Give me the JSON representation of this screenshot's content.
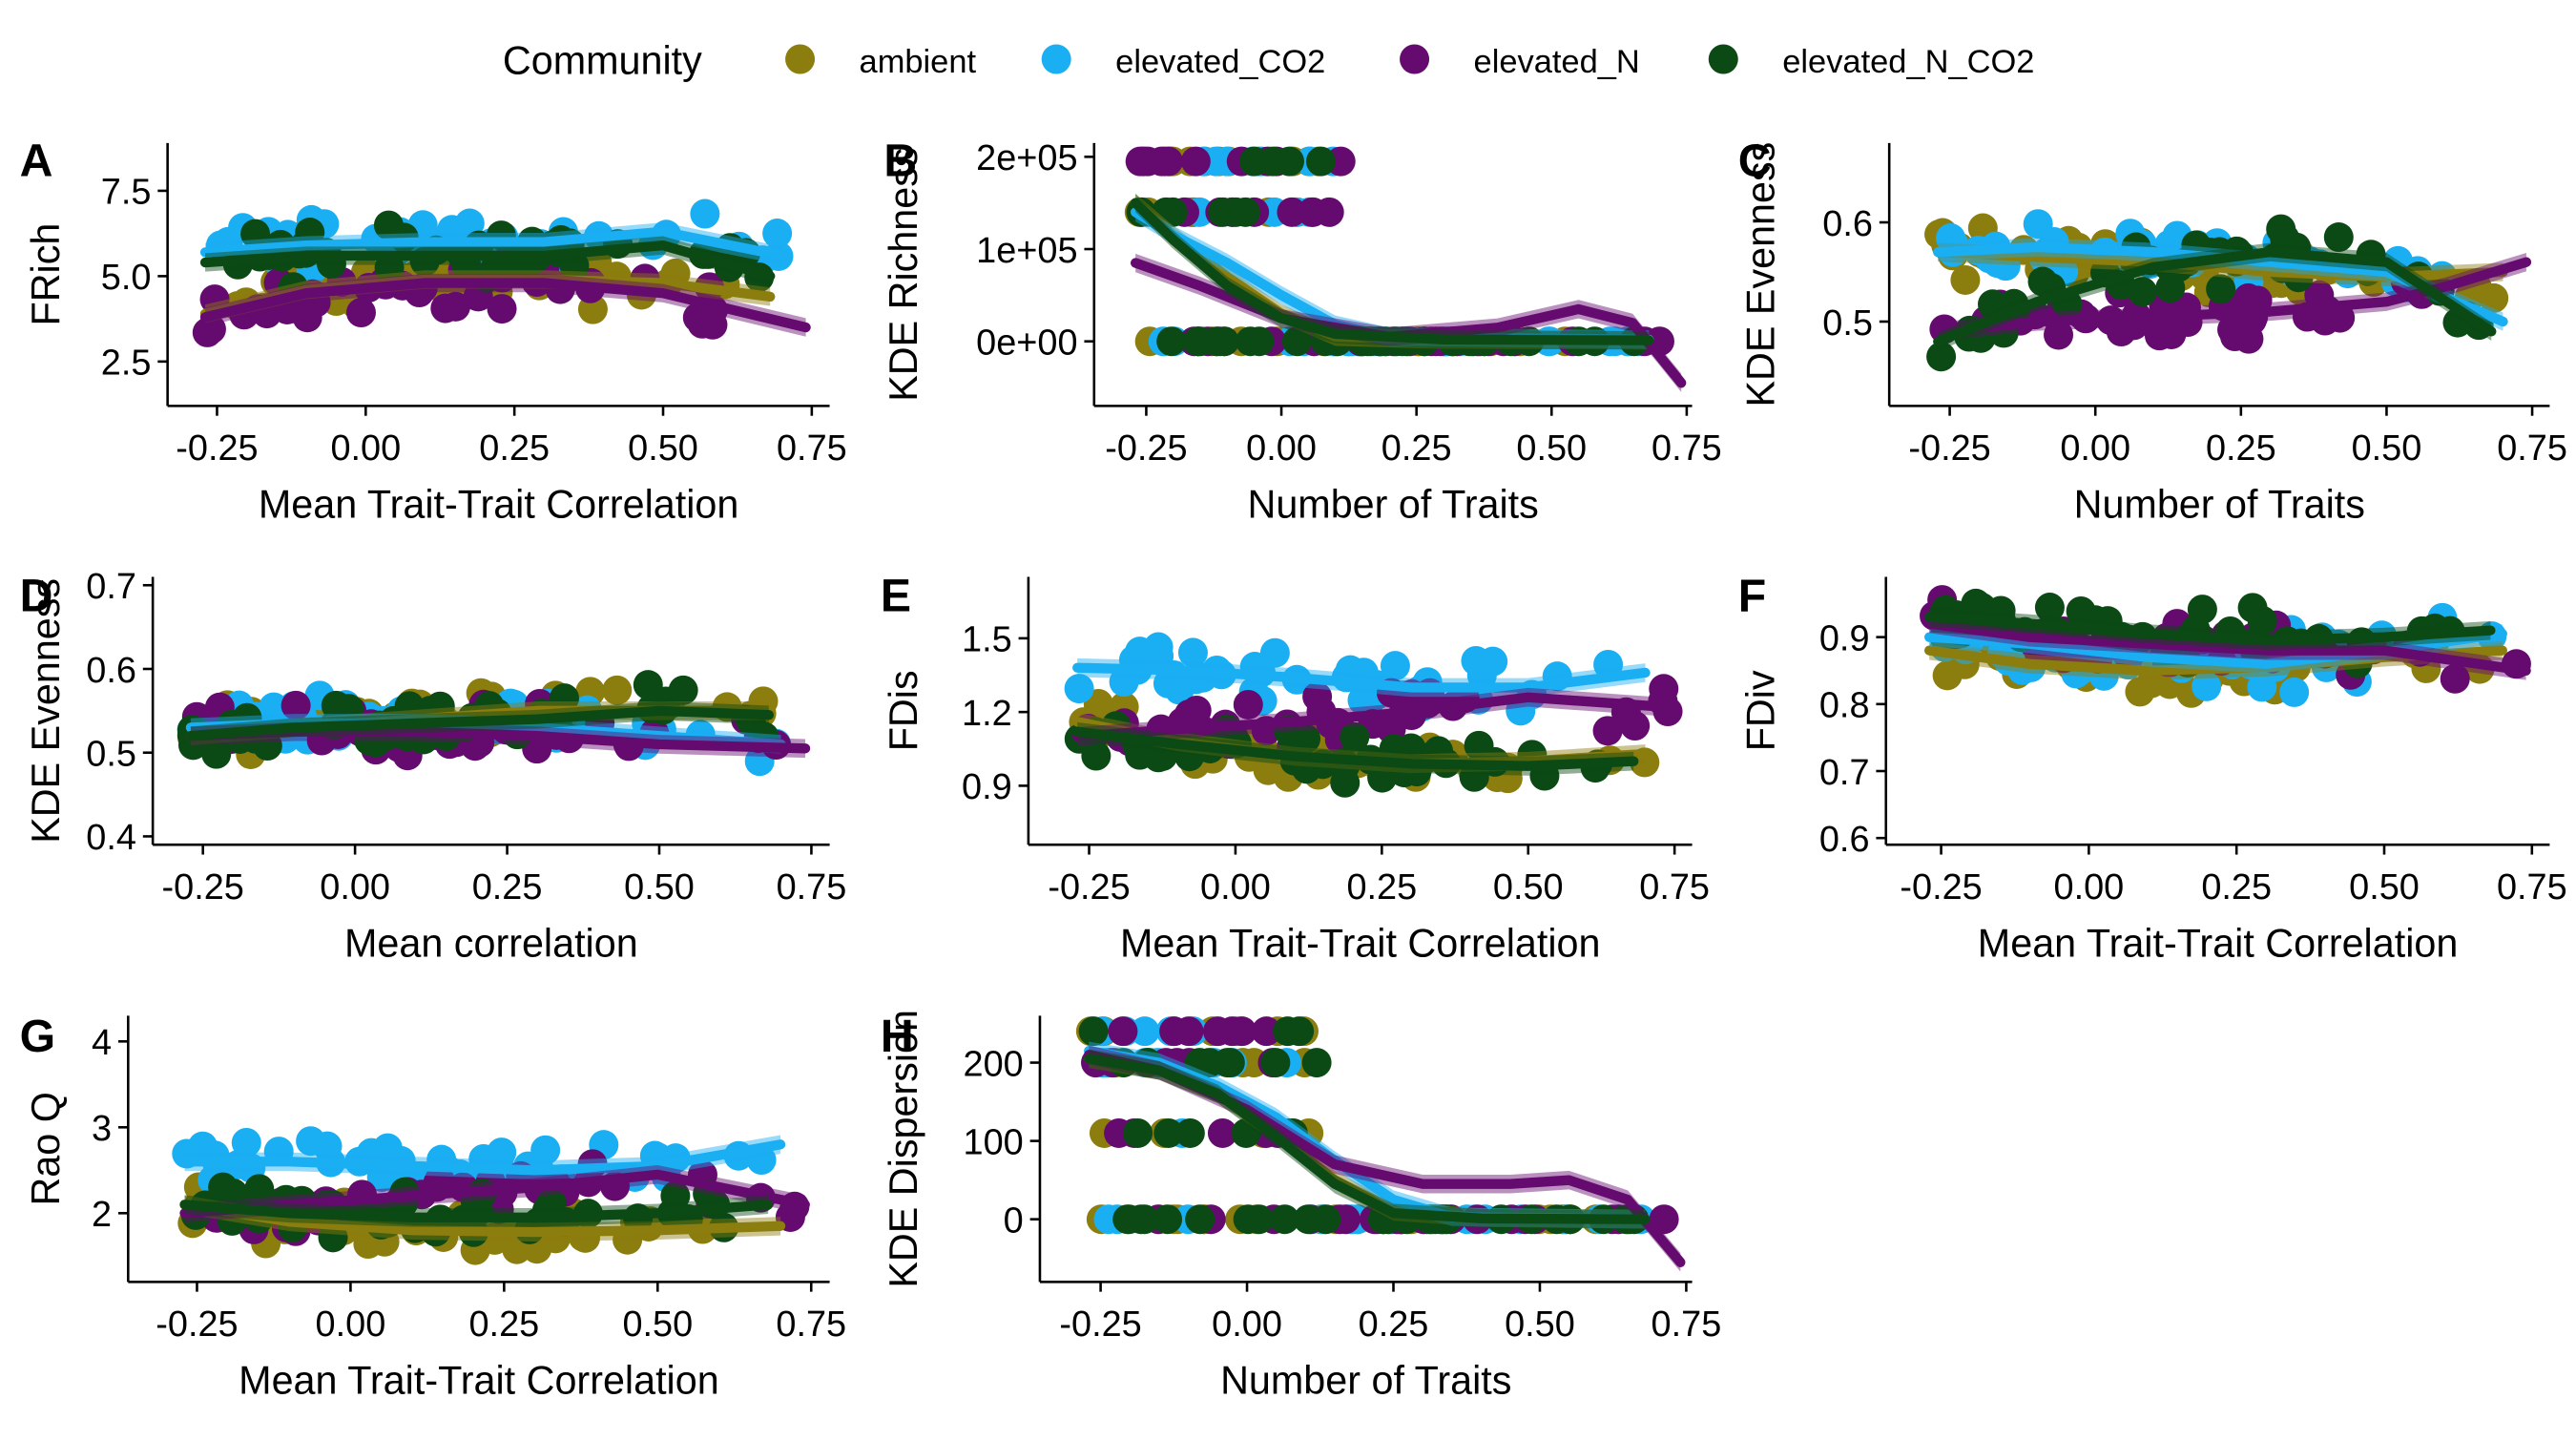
{
  "legend": {
    "title": "Community",
    "items": [
      {
        "label": "ambient",
        "color": "#8B7D0E"
      },
      {
        "label": "elevated_CO2",
        "color": "#1AAEF3"
      },
      {
        "label": "elevated_N",
        "color": "#650A6E"
      },
      {
        "label": "elevated_N_CO2",
        "color": "#0C4A15"
      }
    ]
  },
  "chart_data": [
    {
      "panel": "A",
      "type": "scatter",
      "xlabel": "Mean Trait-Trait Correlation",
      "ylabel": "FRich",
      "xlim": [
        -0.3,
        0.78
      ],
      "ylim": [
        1.2,
        8.9
      ],
      "xticks": [
        -0.25,
        0.0,
        0.25,
        0.5,
        0.75
      ],
      "xtick_labels": [
        "-0.25",
        "0.00",
        "0.25",
        "0.50",
        "0.75"
      ],
      "yticks": [
        2.5,
        5.0,
        7.5
      ],
      "ytick_labels": [
        "2.5",
        "5.0",
        "7.5"
      ],
      "trend": {
        "ambient": [
          [
            -0.27,
            3.9
          ],
          [
            -0.1,
            4.6
          ],
          [
            0.1,
            4.9
          ],
          [
            0.3,
            4.9
          ],
          [
            0.5,
            4.8
          ],
          [
            0.68,
            4.4
          ]
        ],
        "elevated_CO2": [
          [
            -0.27,
            5.7
          ],
          [
            -0.1,
            5.9
          ],
          [
            0.1,
            6.0
          ],
          [
            0.3,
            6.0
          ],
          [
            0.5,
            6.3
          ],
          [
            0.7,
            5.6
          ]
        ],
        "elevated_N": [
          [
            -0.27,
            3.8
          ],
          [
            -0.1,
            4.5
          ],
          [
            0.1,
            4.8
          ],
          [
            0.3,
            4.8
          ],
          [
            0.5,
            4.5
          ],
          [
            0.74,
            3.5
          ]
        ],
        "elevated_N_CO2": [
          [
            -0.27,
            5.4
          ],
          [
            -0.1,
            5.6
          ],
          [
            0.1,
            5.6
          ],
          [
            0.3,
            5.6
          ],
          [
            0.5,
            5.9
          ],
          [
            0.68,
            5.0
          ]
        ]
      }
    },
    {
      "panel": "B",
      "type": "scatter",
      "xlabel": "Number of Traits",
      "ylabel": "KDE Richness",
      "xlim": [
        -0.31,
        0.76
      ],
      "ylim": [
        -70000,
        215000
      ],
      "xticks": [
        -0.25,
        0.0,
        0.25,
        0.5,
        0.75
      ],
      "xtick_labels": [
        "-0.25",
        "0.00",
        "0.25",
        "0.50",
        "0.75"
      ],
      "yticks": [
        0,
        100000,
        200000
      ],
      "ytick_labels": [
        "0e+00",
        "1e+05",
        "2e+05"
      ],
      "trend": {
        "ambient": [
          [
            -0.27,
            150000
          ],
          [
            -0.2,
            115000
          ],
          [
            -0.1,
            70000
          ],
          [
            0.0,
            30000
          ],
          [
            0.1,
            5000
          ],
          [
            0.3,
            2000
          ],
          [
            0.68,
            1000
          ]
        ],
        "elevated_CO2": [
          [
            -0.27,
            140000
          ],
          [
            -0.2,
            115000
          ],
          [
            -0.1,
            85000
          ],
          [
            0.0,
            50000
          ],
          [
            0.1,
            18000
          ],
          [
            0.2,
            5000
          ],
          [
            0.68,
            2000
          ]
        ],
        "elevated_N": [
          [
            -0.27,
            85000
          ],
          [
            -0.15,
            60000
          ],
          [
            0.0,
            25000
          ],
          [
            0.2,
            5000
          ],
          [
            0.4,
            15000
          ],
          [
            0.55,
            35000
          ],
          [
            0.65,
            20000
          ],
          [
            0.74,
            -45000
          ]
        ],
        "elevated_N_CO2": [
          [
            -0.27,
            150000
          ],
          [
            -0.2,
            110000
          ],
          [
            -0.1,
            60000
          ],
          [
            0.0,
            25000
          ],
          [
            0.1,
            8000
          ],
          [
            0.3,
            2000
          ],
          [
            0.68,
            1000
          ]
        ]
      }
    },
    {
      "panel": "C",
      "type": "scatter",
      "xlabel": "Number of Traits",
      "ylabel": "KDE Evenness",
      "xlim": [
        -0.32,
        0.78
      ],
      "ylim": [
        0.415,
        0.68
      ],
      "xticks": [
        -0.25,
        0.0,
        0.25,
        0.5,
        0.75
      ],
      "xtick_labels": [
        "-0.25",
        "0.00",
        "0.25",
        "0.50",
        "0.75"
      ],
      "yticks": [
        0.5,
        0.6
      ],
      "ytick_labels": [
        "0.5",
        "0.6"
      ],
      "trend": {
        "ambient": [
          [
            -0.27,
            0.57
          ],
          [
            -0.1,
            0.565
          ],
          [
            0.1,
            0.56
          ],
          [
            0.3,
            0.55
          ],
          [
            0.5,
            0.545
          ],
          [
            0.7,
            0.55
          ]
        ],
        "elevated_CO2": [
          [
            -0.27,
            0.57
          ],
          [
            -0.1,
            0.575
          ],
          [
            0.1,
            0.57
          ],
          [
            0.3,
            0.56
          ],
          [
            0.5,
            0.55
          ],
          [
            0.7,
            0.5
          ]
        ],
        "elevated_N": [
          [
            -0.27,
            0.49
          ],
          [
            -0.1,
            0.5
          ],
          [
            0.1,
            0.505
          ],
          [
            0.3,
            0.51
          ],
          [
            0.5,
            0.52
          ],
          [
            0.6,
            0.535
          ],
          [
            0.74,
            0.56
          ]
        ],
        "elevated_N_CO2": [
          [
            -0.27,
            0.48
          ],
          [
            -0.1,
            0.52
          ],
          [
            0.1,
            0.555
          ],
          [
            0.3,
            0.57
          ],
          [
            0.5,
            0.56
          ],
          [
            0.68,
            0.49
          ]
        ]
      }
    },
    {
      "panel": "D",
      "type": "scatter",
      "xlabel": "Mean correlation",
      "ylabel": "KDE Evenness",
      "xlim": [
        -0.3,
        0.78
      ],
      "ylim": [
        0.39,
        0.71
      ],
      "xticks": [
        -0.25,
        0.0,
        0.25,
        0.5,
        0.75
      ],
      "xtick_labels": [
        "-0.25",
        "0.00",
        "0.25",
        "0.50",
        "0.75"
      ],
      "yticks": [
        0.4,
        0.5,
        0.6,
        0.7
      ],
      "ytick_labels": [
        "0.4",
        "0.5",
        "0.6",
        "0.7"
      ],
      "trend": {
        "ambient": [
          [
            -0.27,
            0.52
          ],
          [
            -0.1,
            0.53
          ],
          [
            0.1,
            0.54
          ],
          [
            0.3,
            0.55
          ],
          [
            0.5,
            0.55
          ],
          [
            0.68,
            0.55
          ]
        ],
        "elevated_CO2": [
          [
            -0.27,
            0.53
          ],
          [
            -0.1,
            0.535
          ],
          [
            0.1,
            0.535
          ],
          [
            0.3,
            0.53
          ],
          [
            0.5,
            0.52
          ],
          [
            0.7,
            0.51
          ]
        ],
        "elevated_N": [
          [
            -0.27,
            0.52
          ],
          [
            -0.1,
            0.525
          ],
          [
            0.1,
            0.525
          ],
          [
            0.3,
            0.52
          ],
          [
            0.5,
            0.51
          ],
          [
            0.74,
            0.505
          ]
        ],
        "elevated_N_CO2": [
          [
            -0.27,
            0.52
          ],
          [
            -0.1,
            0.53
          ],
          [
            0.1,
            0.535
          ],
          [
            0.3,
            0.54
          ],
          [
            0.5,
            0.55
          ],
          [
            0.68,
            0.545
          ]
        ]
      }
    },
    {
      "panel": "E",
      "type": "scatter",
      "xlabel": "Mean Trait-Trait Correlation",
      "ylabel": "FDis",
      "xlim": [
        -0.32,
        0.78
      ],
      "ylim": [
        0.66,
        1.75
      ],
      "xticks": [
        -0.25,
        0.0,
        0.25,
        0.5,
        0.75
      ],
      "xtick_labels": [
        "-0.25",
        "0.00",
        "0.25",
        "0.50",
        "0.75"
      ],
      "yticks": [
        0.9,
        1.2,
        1.5
      ],
      "ytick_labels": [
        "0.9",
        "1.2",
        "1.5"
      ],
      "trend": {
        "ambient": [
          [
            -0.27,
            1.16
          ],
          [
            -0.1,
            1.08
          ],
          [
            0.1,
            1.02
          ],
          [
            0.3,
            0.99
          ],
          [
            0.5,
            1.0
          ],
          [
            0.7,
            1.03
          ]
        ],
        "elevated_CO2": [
          [
            -0.27,
            1.38
          ],
          [
            -0.1,
            1.37
          ],
          [
            0.1,
            1.34
          ],
          [
            0.3,
            1.3
          ],
          [
            0.5,
            1.3
          ],
          [
            0.7,
            1.36
          ]
        ],
        "elevated_N": [
          [
            -0.27,
            1.1
          ],
          [
            -0.1,
            1.13
          ],
          [
            0.1,
            1.16
          ],
          [
            0.3,
            1.2
          ],
          [
            0.5,
            1.26
          ],
          [
            0.74,
            1.22
          ]
        ],
        "elevated_N_CO2": [
          [
            -0.27,
            1.12
          ],
          [
            -0.1,
            1.07
          ],
          [
            0.1,
            1.02
          ],
          [
            0.3,
            0.99
          ],
          [
            0.5,
            0.98
          ],
          [
            0.68,
            1.0
          ]
        ]
      }
    },
    {
      "panel": "F",
      "type": "scatter",
      "xlabel": "Mean Trait-Trait Correlation",
      "ylabel": "FDiv",
      "xlim": [
        -0.31,
        0.78
      ],
      "ylim": [
        0.59,
        0.99
      ],
      "xticks": [
        -0.25,
        0.0,
        0.25,
        0.5,
        0.75
      ],
      "xtick_labels": [
        "-0.25",
        "0.00",
        "0.25",
        "0.50",
        "0.75"
      ],
      "yticks": [
        0.6,
        0.7,
        0.8,
        0.9
      ],
      "ytick_labels": [
        "0.6",
        "0.7",
        "0.8",
        "0.9"
      ],
      "trend": {
        "ambient": [
          [
            -0.27,
            0.88
          ],
          [
            -0.1,
            0.86
          ],
          [
            0.1,
            0.85
          ],
          [
            0.3,
            0.855
          ],
          [
            0.5,
            0.87
          ],
          [
            0.7,
            0.88
          ]
        ],
        "elevated_CO2": [
          [
            -0.27,
            0.9
          ],
          [
            -0.1,
            0.89
          ],
          [
            0.1,
            0.87
          ],
          [
            0.3,
            0.86
          ],
          [
            0.5,
            0.88
          ],
          [
            0.7,
            0.905
          ]
        ],
        "elevated_N": [
          [
            -0.27,
            0.92
          ],
          [
            -0.1,
            0.9
          ],
          [
            0.1,
            0.89
          ],
          [
            0.3,
            0.88
          ],
          [
            0.5,
            0.88
          ],
          [
            0.74,
            0.85
          ]
        ],
        "elevated_N_CO2": [
          [
            -0.27,
            0.93
          ],
          [
            -0.1,
            0.92
          ],
          [
            0.1,
            0.905
          ],
          [
            0.3,
            0.895
          ],
          [
            0.5,
            0.9
          ],
          [
            0.68,
            0.91
          ]
        ]
      }
    },
    {
      "panel": "G",
      "type": "scatter",
      "xlabel": "Mean Trait-Trait Correlation",
      "ylabel": "Rao Q",
      "xlim": [
        -0.33,
        0.78
      ],
      "ylim": [
        1.2,
        4.3
      ],
      "xticks": [
        -0.25,
        0.0,
        0.25,
        0.5,
        0.75
      ],
      "xtick_labels": [
        "-0.25",
        "0.00",
        "0.25",
        "0.50",
        "0.75"
      ],
      "yticks": [
        2,
        3,
        4
      ],
      "ytick_labels": [
        "2",
        "3",
        "4"
      ],
      "trend": {
        "ambient": [
          [
            -0.27,
            2.1
          ],
          [
            -0.1,
            1.9
          ],
          [
            0.1,
            1.8
          ],
          [
            0.3,
            1.78
          ],
          [
            0.5,
            1.8
          ],
          [
            0.7,
            1.85
          ]
        ],
        "elevated_CO2": [
          [
            -0.27,
            2.6
          ],
          [
            -0.1,
            2.6
          ],
          [
            0.1,
            2.55
          ],
          [
            0.3,
            2.5
          ],
          [
            0.5,
            2.55
          ],
          [
            0.7,
            2.8
          ]
        ],
        "elevated_N": [
          [
            -0.27,
            2.0
          ],
          [
            -0.1,
            2.1
          ],
          [
            0.1,
            2.2
          ],
          [
            0.3,
            2.3
          ],
          [
            0.5,
            2.45
          ],
          [
            0.74,
            2.1
          ]
        ],
        "elevated_N_CO2": [
          [
            -0.27,
            2.1
          ],
          [
            -0.1,
            2.0
          ],
          [
            0.1,
            1.95
          ],
          [
            0.3,
            1.95
          ],
          [
            0.5,
            2.0
          ],
          [
            0.68,
            2.1
          ]
        ]
      }
    },
    {
      "panel": "H",
      "type": "scatter",
      "xlabel": "Number of Traits",
      "ylabel": "KDE Dispersion",
      "xlim": [
        -0.32,
        0.76
      ],
      "ylim": [
        -80,
        260
      ],
      "xticks": [
        -0.25,
        0.0,
        0.25,
        0.5,
        0.75
      ],
      "xtick_labels": [
        "-0.25",
        "0.00",
        "0.25",
        "0.50",
        "0.75"
      ],
      "yticks": [
        0,
        100,
        200
      ],
      "ytick_labels": [
        "0",
        "100",
        "200"
      ],
      "trend": {
        "ambient": [
          [
            -0.27,
            205
          ],
          [
            -0.15,
            190
          ],
          [
            -0.05,
            160
          ],
          [
            0.05,
            110
          ],
          [
            0.15,
            50
          ],
          [
            0.25,
            10
          ],
          [
            0.4,
            2
          ],
          [
            0.68,
            0
          ]
        ],
        "elevated_CO2": [
          [
            -0.27,
            215
          ],
          [
            -0.15,
            200
          ],
          [
            -0.05,
            170
          ],
          [
            0.05,
            130
          ],
          [
            0.15,
            75
          ],
          [
            0.25,
            25
          ],
          [
            0.35,
            3
          ],
          [
            0.68,
            0
          ]
        ],
        "elevated_N": [
          [
            -0.27,
            210
          ],
          [
            -0.15,
            190
          ],
          [
            0.0,
            140
          ],
          [
            0.15,
            70
          ],
          [
            0.3,
            45
          ],
          [
            0.45,
            45
          ],
          [
            0.55,
            50
          ],
          [
            0.65,
            25
          ],
          [
            0.74,
            -55
          ]
        ],
        "elevated_N_CO2": [
          [
            -0.27,
            205
          ],
          [
            -0.15,
            190
          ],
          [
            -0.05,
            160
          ],
          [
            0.05,
            105
          ],
          [
            0.15,
            45
          ],
          [
            0.25,
            8
          ],
          [
            0.4,
            1
          ],
          [
            0.68,
            0
          ]
        ]
      }
    }
  ]
}
